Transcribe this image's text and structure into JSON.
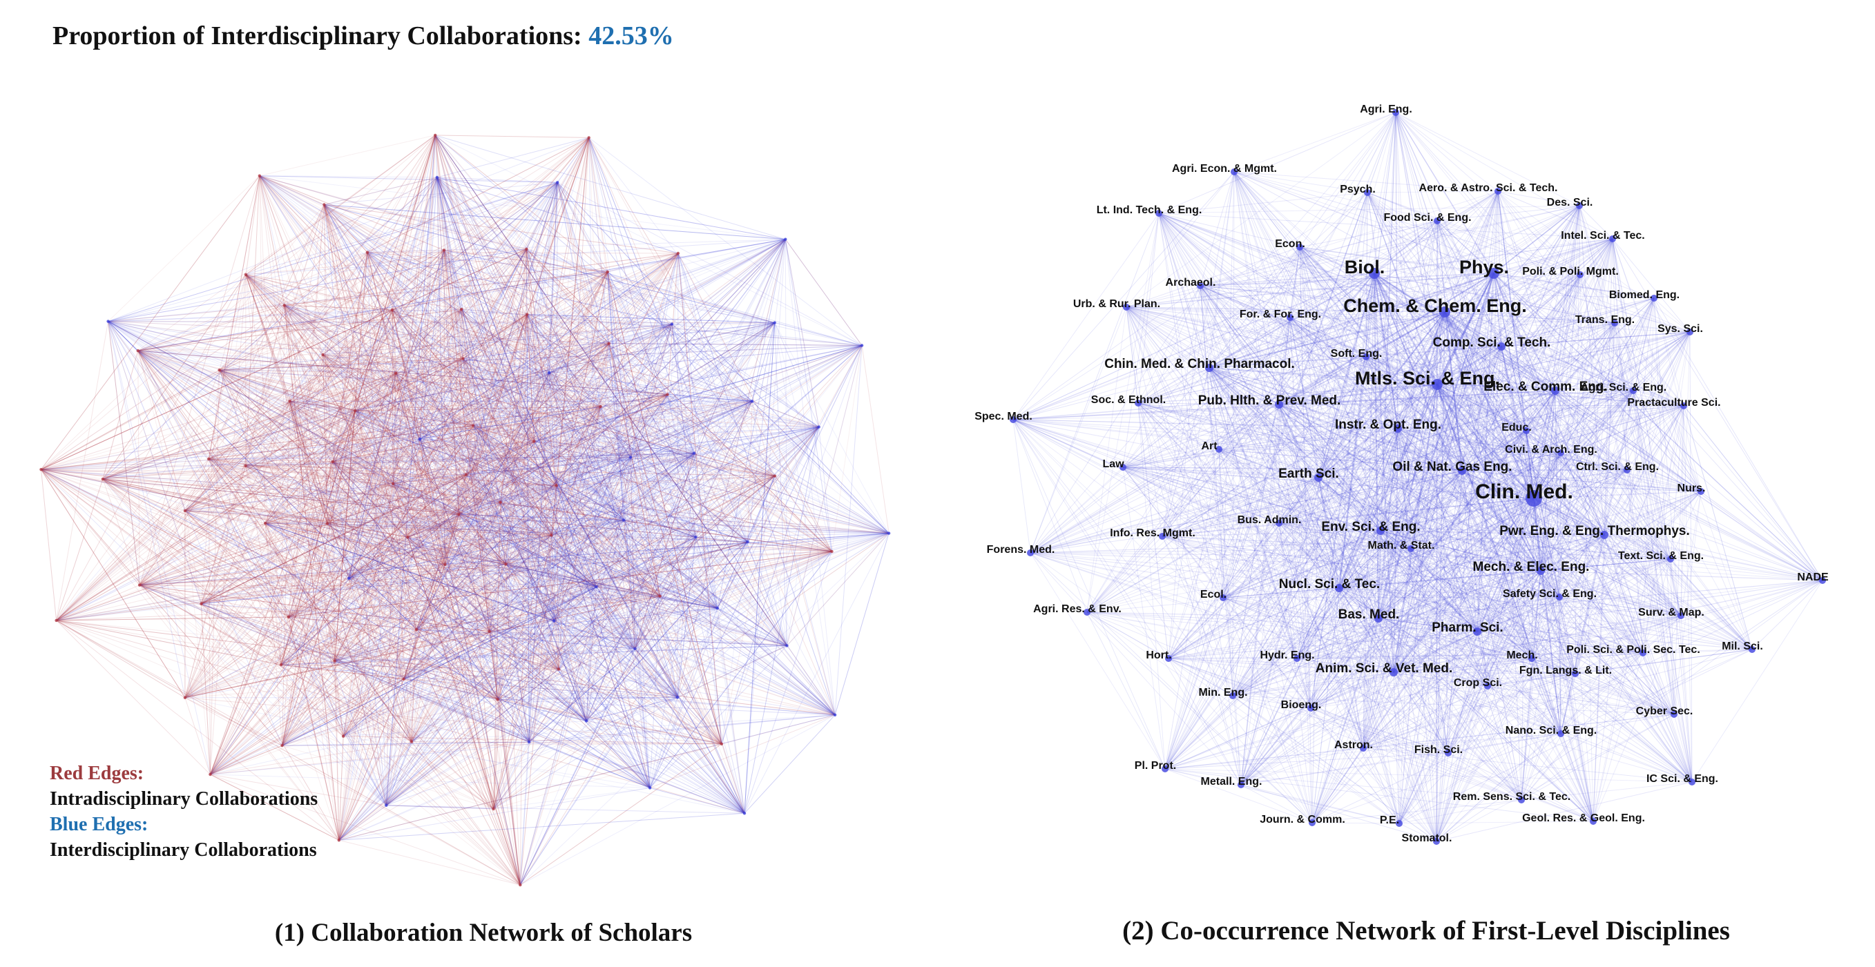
{
  "header": {
    "label": "Proportion of Interdisciplinary Collaborations:",
    "value": "42.53%"
  },
  "legend": {
    "red_title": "Red Edges:",
    "red_desc": "Intradisciplinary Collaborations",
    "blue_title": "Blue Edges:",
    "blue_desc": "Interdisciplinary Collaborations"
  },
  "colors": {
    "intra_edge": "#b03a46",
    "inter_edge": "#3b3fd8",
    "node": "#4a4de0",
    "highlight": "#1f6fb0"
  },
  "captions": {
    "left": "(1) Collaboration Network of Scholars",
    "right": "(2) Co-occurrence Network of First-Level Disciplines"
  },
  "disciplines": [
    {
      "label": "Agri. Eng.",
      "size": "s"
    },
    {
      "label": "Agri. Econ. & Mgmt.",
      "size": "s"
    },
    {
      "label": "Psych.",
      "size": "s"
    },
    {
      "label": "Aero. & Astro. Sci. & Tech.",
      "size": "s"
    },
    {
      "label": "Des. Sci.",
      "size": "s"
    },
    {
      "label": "Lt. Ind. Tech. & Eng.",
      "size": "s"
    },
    {
      "label": "Food Sci. & Eng.",
      "size": "s"
    },
    {
      "label": "Intel. Sci. & Tec.",
      "size": "s"
    },
    {
      "label": "Econ.",
      "size": "s"
    },
    {
      "label": "Biol.",
      "size": "l"
    },
    {
      "label": "Phys.",
      "size": "l"
    },
    {
      "label": "Poli. & Poli. Mgmt.",
      "size": "s"
    },
    {
      "label": "Archaeol.",
      "size": "s"
    },
    {
      "label": "Biomed. Eng.",
      "size": "s"
    },
    {
      "label": "Urb. & Rur. Plan.",
      "size": "s"
    },
    {
      "label": "For. & For. Eng.",
      "size": "s"
    },
    {
      "label": "Chem. & Chem. Eng.",
      "size": "l"
    },
    {
      "label": "Trans. Eng.",
      "size": "s"
    },
    {
      "label": "Sys. Sci.",
      "size": "s"
    },
    {
      "label": "Comp. Sci. & Tech.",
      "size": "m"
    },
    {
      "label": "Soft. Eng.",
      "size": "s"
    },
    {
      "label": "Chin. Med. & Chin. Pharmacol.",
      "size": "m"
    },
    {
      "label": "Mtls. Sci. & Eng.",
      "size": "l"
    },
    {
      "label": "Elec. & Comm. Eng.",
      "size": "m"
    },
    {
      "label": "Agri. Sci. & Eng.",
      "size": "s"
    },
    {
      "label": "Soc. & Ethnol.",
      "size": "s"
    },
    {
      "label": "Pub. Hlth. & Prev. Med.",
      "size": "m"
    },
    {
      "label": "Practaculture Sci.",
      "size": "s"
    },
    {
      "label": "Spec. Med.",
      "size": "s"
    },
    {
      "label": "Instr. & Opt. Eng.",
      "size": "m"
    },
    {
      "label": "Educ.",
      "size": "s"
    },
    {
      "label": "Art",
      "size": "s"
    },
    {
      "label": "Civi. & Arch. Eng.",
      "size": "s"
    },
    {
      "label": "Law",
      "size": "s"
    },
    {
      "label": "Oil & Nat. Gas Eng.",
      "size": "m"
    },
    {
      "label": "Ctrl. Sci. & Eng.",
      "size": "s"
    },
    {
      "label": "Earth Sci.",
      "size": "m"
    },
    {
      "label": "Clin. Med.",
      "size": "xl"
    },
    {
      "label": "Nurs.",
      "size": "s"
    },
    {
      "label": "Bus. Admin.",
      "size": "s"
    },
    {
      "label": "Env. Sci. & Eng.",
      "size": "m"
    },
    {
      "label": "Info. Res. Mgmt.",
      "size": "s"
    },
    {
      "label": "Pwr. Eng. & Eng. Thermophys.",
      "size": "m"
    },
    {
      "label": "Forens. Med.",
      "size": "s"
    },
    {
      "label": "Math. & Stat.",
      "size": "s"
    },
    {
      "label": "Text. Sci. & Eng.",
      "size": "s"
    },
    {
      "label": "Mech. & Elec. Eng.",
      "size": "m"
    },
    {
      "label": "NADE",
      "size": "s"
    },
    {
      "label": "Nucl. Sci. & Tec.",
      "size": "m"
    },
    {
      "label": "Ecol.",
      "size": "s"
    },
    {
      "label": "Safety Sci. & Eng.",
      "size": "s"
    },
    {
      "label": "Agri. Res. & Env.",
      "size": "s"
    },
    {
      "label": "Bas. Med.",
      "size": "m"
    },
    {
      "label": "Surv. & Map.",
      "size": "s"
    },
    {
      "label": "Pharm. Sci.",
      "size": "m"
    },
    {
      "label": "Hort.",
      "size": "s"
    },
    {
      "label": "Hydr. Eng.",
      "size": "s"
    },
    {
      "label": "Mech.",
      "size": "s"
    },
    {
      "label": "Poli. Sci. & Poli. Sec. Tec.",
      "size": "s"
    },
    {
      "label": "Mil. Sci.",
      "size": "s"
    },
    {
      "label": "Anim. Sci. & Vet. Med.",
      "size": "m"
    },
    {
      "label": "Fgn. Langs. & Lit.",
      "size": "s"
    },
    {
      "label": "Crop Sci.",
      "size": "s"
    },
    {
      "label": "Min. Eng.",
      "size": "s"
    },
    {
      "label": "Bioeng.",
      "size": "s"
    },
    {
      "label": "Cyber Sec.",
      "size": "s"
    },
    {
      "label": "Nano. Sci. & Eng.",
      "size": "s"
    },
    {
      "label": "Astron.",
      "size": "s"
    },
    {
      "label": "Fish. Sci.",
      "size": "s"
    },
    {
      "label": "Pl. Prot.",
      "size": "s"
    },
    {
      "label": "IC Sci. & Eng.",
      "size": "s"
    },
    {
      "label": "Metall. Eng.",
      "size": "s"
    },
    {
      "label": "Rem. Sens. Sci. & Tec.",
      "size": "s"
    },
    {
      "label": "Geol. Res. & Geol. Eng.",
      "size": "s"
    },
    {
      "label": "Journ. & Comm.",
      "size": "s"
    },
    {
      "label": "P.E.",
      "size": "s"
    },
    {
      "label": "Stomatol.",
      "size": "s"
    }
  ]
}
